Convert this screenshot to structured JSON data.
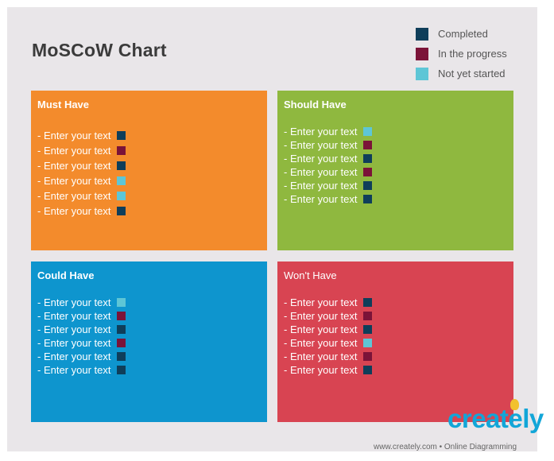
{
  "title": "MoSCoW Chart",
  "legend": [
    {
      "label": "Completed",
      "color": "#0f3e5a"
    },
    {
      "label": "In the progress",
      "color": "#7b1338"
    },
    {
      "label": "Not yet started",
      "color": "#5ec6d6"
    }
  ],
  "colors": {
    "completed": "#0f3e5a",
    "in_progress": "#7b1338",
    "not_started": "#5ec6d6",
    "must_have_bg": "#f38b2c",
    "should_have_bg": "#8fb83f",
    "could_have_bg": "#0e95ce",
    "wont_have_bg": "#d84452"
  },
  "quadrants": [
    {
      "title": "Must Have",
      "items": [
        {
          "text": "- Enter your text",
          "status": "completed"
        },
        {
          "text": "- Enter your text",
          "status": "in_progress"
        },
        {
          "text": "- Enter your text",
          "status": "completed"
        },
        {
          "text": "- Enter your text",
          "status": "not_started"
        },
        {
          "text": "- Enter your text",
          "status": "not_started"
        },
        {
          "text": "- Enter your text",
          "status": "completed"
        }
      ]
    },
    {
      "title": "Should Have",
      "items": [
        {
          "text": "- Enter your text",
          "status": "not_started"
        },
        {
          "text": "- Enter your text",
          "status": "in_progress"
        },
        {
          "text": "- Enter your text",
          "status": "completed"
        },
        {
          "text": "- Enter your text",
          "status": "in_progress"
        },
        {
          "text": "- Enter your text",
          "status": "completed"
        },
        {
          "text": "- Enter your text",
          "status": "completed"
        }
      ]
    },
    {
      "title": "Could Have",
      "items": [
        {
          "text": "- Enter your text",
          "status": "not_started"
        },
        {
          "text": "- Enter your text",
          "status": "in_progress"
        },
        {
          "text": "- Enter your text",
          "status": "completed"
        },
        {
          "text": "- Enter your text",
          "status": "in_progress"
        },
        {
          "text": "- Enter your text",
          "status": "completed"
        },
        {
          "text": "- Enter your text",
          "status": "completed"
        }
      ]
    },
    {
      "title": "Won't Have",
      "items": [
        {
          "text": "- Enter your text",
          "status": "completed"
        },
        {
          "text": "- Enter your text",
          "status": "in_progress"
        },
        {
          "text": "- Enter your text",
          "status": "completed"
        },
        {
          "text": "- Enter your text",
          "status": "not_started"
        },
        {
          "text": "- Enter your text",
          "status": "in_progress"
        },
        {
          "text": "- Enter your text",
          "status": "completed"
        }
      ]
    }
  ],
  "branding": {
    "logo_text": "creately",
    "tagline": "www.creately.com • Online Diagramming"
  }
}
